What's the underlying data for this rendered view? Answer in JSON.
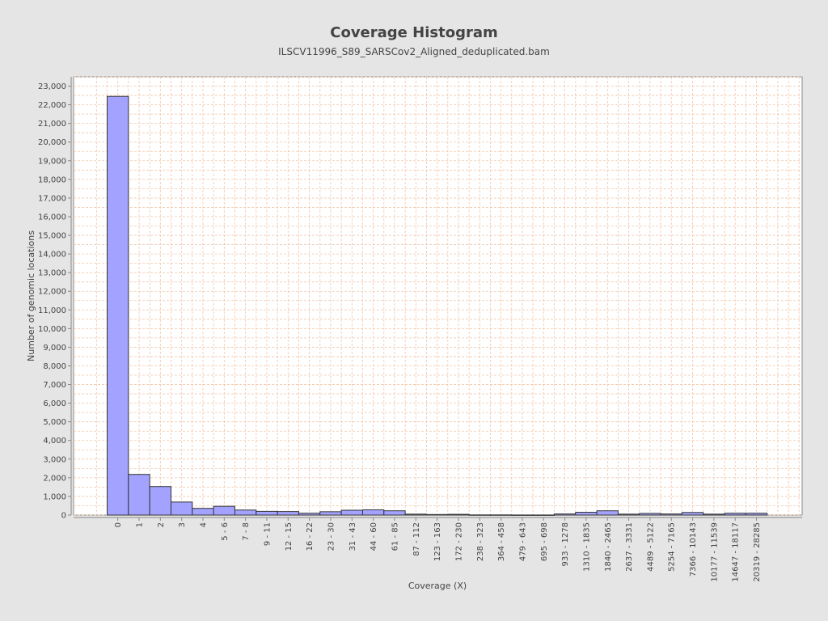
{
  "chart_data": {
    "type": "bar",
    "title": "Coverage Histogram",
    "subtitle": "ILSCV11996_S89_SARSCov2_Aligned_deduplicated.bam",
    "xlabel": "Coverage (X)",
    "ylabel": "Number of genomic locations",
    "ylim": [
      0,
      23500
    ],
    "yticks": [
      0,
      1000,
      2000,
      3000,
      4000,
      5000,
      6000,
      7000,
      8000,
      9000,
      10000,
      11000,
      12000,
      13000,
      14000,
      15000,
      16000,
      17000,
      18000,
      19000,
      20000,
      21000,
      22000,
      23000
    ],
    "grid": true,
    "legend": "none",
    "categories": [
      "0",
      "1",
      "2",
      "3",
      "4",
      "5 - 6",
      "7 - 8",
      "9 - 11",
      "12 - 15",
      "16 - 22",
      "23 - 30",
      "31 - 43",
      "44 - 60",
      "61 - 85",
      "87 - 112",
      "123 - 163",
      "172 - 230",
      "238 - 323",
      "364 - 458",
      "479 - 643",
      "695 - 698",
      "933 - 1278",
      "1310 - 1835",
      "1840 - 2465",
      "2637 - 3331",
      "4489 - 5122",
      "5254 - 7165",
      "7366 - 10143",
      "10177 - 11539",
      "14647 - 18117",
      "20319 - 28285"
    ],
    "values": [
      22450,
      2180,
      1530,
      700,
      360,
      470,
      270,
      200,
      190,
      100,
      180,
      260,
      280,
      230,
      50,
      30,
      40,
      10,
      10,
      5,
      5,
      60,
      150,
      230,
      50,
      90,
      60,
      140,
      50,
      100,
      100
    ],
    "colors": {
      "bar_fill": "#a3a3ff",
      "bar_stroke": "#333333",
      "plot_bg": "#ffffff",
      "grid": "#f2c6a8",
      "page_bg": "#e5e5e5"
    }
  }
}
